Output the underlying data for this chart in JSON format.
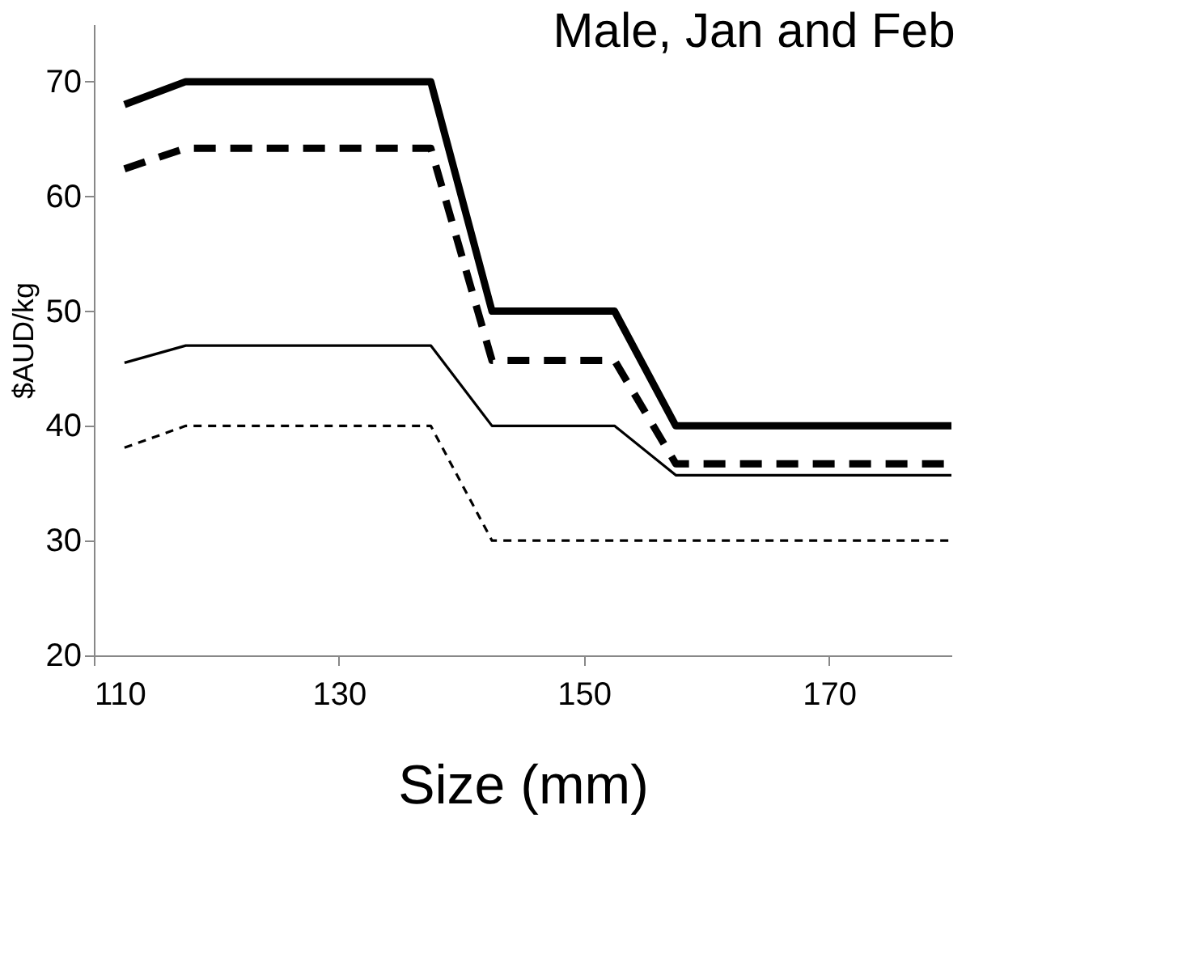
{
  "chart_data": {
    "type": "line",
    "title": "Male, Jan and Feb",
    "xlabel": "Size (mm)",
    "ylabel": "$AUD/kg",
    "x": [
      112.5,
      117.5,
      137.5,
      142.5,
      152.5,
      157.5,
      180
    ],
    "xlim": [
      110,
      180
    ],
    "xticks": [
      110,
      130,
      150,
      170
    ],
    "ylim": [
      20,
      75
    ],
    "yticks": [
      20,
      30,
      40,
      50,
      60,
      70
    ],
    "grid": false,
    "legend": false,
    "marker": "none",
    "series": [
      {
        "color": "#000000",
        "line_style": "solid",
        "values": [
          68,
          70,
          70,
          50,
          50,
          40,
          40
        ]
      },
      {
        "color": "#000000",
        "line_style": "dashed",
        "values": [
          62.4,
          64.2,
          64.2,
          45.7,
          45.7,
          36.7,
          36.7
        ]
      },
      {
        "color": "#000000",
        "line_style": "solid",
        "values": [
          45.5,
          47,
          47,
          40,
          40,
          35.7,
          35.7
        ]
      },
      {
        "color": "#000000",
        "line_style": "dashed",
        "values": [
          38.1,
          40,
          40,
          30,
          30,
          30,
          30
        ]
      }
    ]
  }
}
